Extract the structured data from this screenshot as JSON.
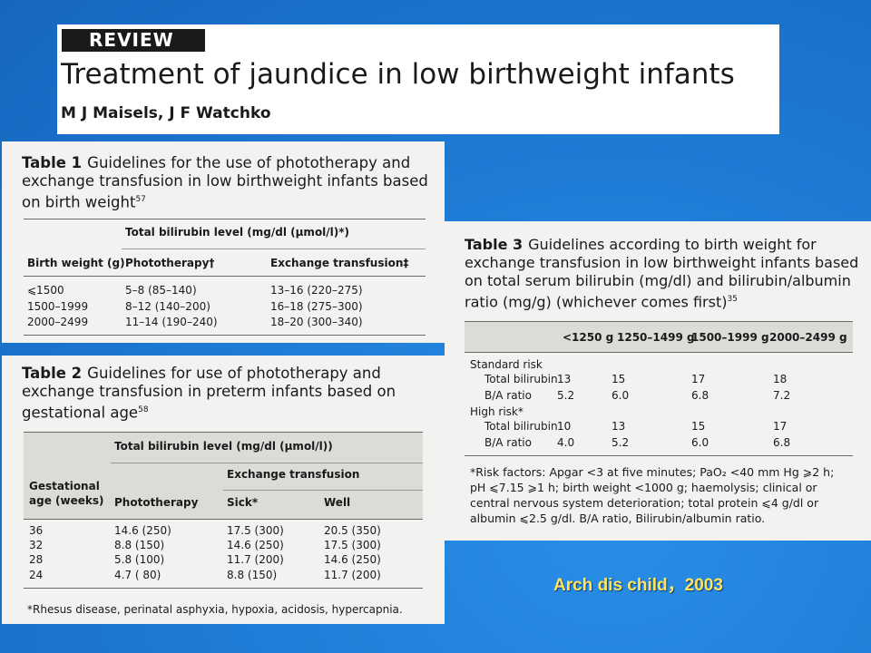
{
  "header": {
    "badge": "REVIEW",
    "title": "Treatment of jaundice in low birthweight infants",
    "authors": "M J Maisels, J F Watchko"
  },
  "table1": {
    "number": "Table 1",
    "caption": "Guidelines for the use of phototherapy and exchange transfusion in low birthweight infants based on birth weight",
    "ref": "57",
    "group_header": "Total bilirubin level (mg/dl (μmol/l)*)",
    "col_birthweight": "Birth weight (g)",
    "col_photo": "Phototherapy†",
    "col_exchange": "Exchange transfusion‡",
    "rows": [
      {
        "weight": "⩽1500",
        "photo": "5–8 (85–140)",
        "exchange": "13–16 (220–275)"
      },
      {
        "weight": "1500–1999",
        "photo": "8–12 (140–200)",
        "exchange": "16–18 (275–300)"
      },
      {
        "weight": "2000–2499",
        "photo": "11–14 (190–240)",
        "exchange": "18–20 (300–340)"
      }
    ]
  },
  "table2": {
    "number": "Table 2",
    "caption": "Guidelines for use of phototherapy and exchange transfusion in preterm infants based on gestational age",
    "ref": "58",
    "group_header": "Total bilirubin level (mg/dl (μmol/l))",
    "sub_header": "Exchange transfusion",
    "col_age": "Gestational age (weeks)",
    "col_photo": "Phototherapy",
    "col_sick": "Sick*",
    "col_well": "Well",
    "rows": [
      {
        "age": "36",
        "photo": "14.6 (250)",
        "sick": "17.5 (300)",
        "well": "20.5 (350)"
      },
      {
        "age": "32",
        "photo": "8.8 (150)",
        "sick": "14.6 (250)",
        "well": "17.5 (300)"
      },
      {
        "age": "28",
        "photo": "5.8 (100)",
        "sick": "11.7 (200)",
        "well": "14.6 (250)"
      },
      {
        "age": "24",
        "photo": "4.7 ( 80)",
        "sick": "8.8 (150)",
        "well": "11.7 (200)"
      }
    ],
    "footnote": "*Rhesus disease, perinatal asphyxia, hypoxia, acidosis, hypercapnia."
  },
  "table3": {
    "number": "Table 3",
    "caption": "Guidelines according to birth weight for exchange transfusion in low birthweight infants based on total serum bilirubin (mg/dl) and bilirubin/albumin ratio (mg/g) (whichever comes first)",
    "ref": "35",
    "cols": [
      "<1250 g",
      "1250–1499 g",
      "1500–1999 g",
      "2000–2499 g"
    ],
    "standard_label": "Standard risk",
    "high_label": "High risk*",
    "tb_label": "Total bilirubin",
    "ba_label": "B/A ratio",
    "standard_tb": [
      "13",
      "15",
      "17",
      "18"
    ],
    "standard_ba": [
      "5.2",
      "6.0",
      "6.8",
      "7.2"
    ],
    "high_tb": [
      "10",
      "13",
      "15",
      "17"
    ],
    "high_ba": [
      "4.0",
      "5.2",
      "6.0",
      "6.8"
    ],
    "footnote": "*Risk factors: Apgar <3 at five minutes; PaO₂ <40 mm Hg ⩾2 h; pH ⩽7.15 ⩾1 h; birth weight <1000 g; haemolysis; clinical or central nervous system deterioration; total protein ⩽4 g/dl or albumin ⩽2.5 g/dl. B/A ratio, Bilirubin/albumin ratio."
  },
  "citation": "Arch dis child，2003"
}
